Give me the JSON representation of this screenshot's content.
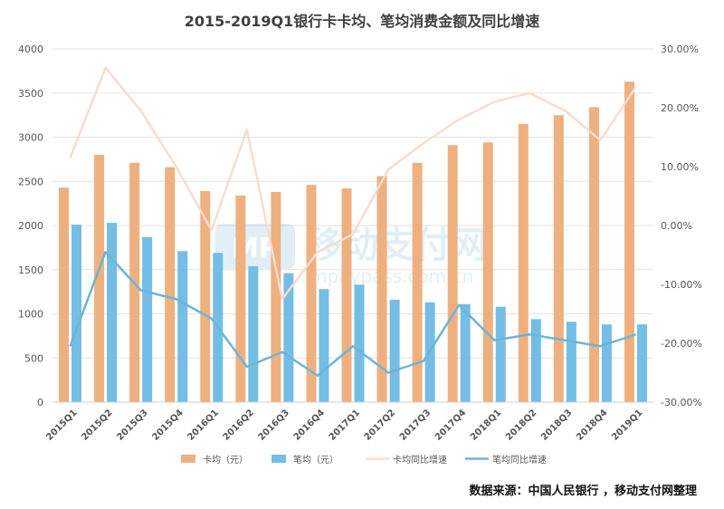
{
  "chart_data": {
    "type": "bar",
    "title": "2015-2019Q1银行卡卡均、笔均消费金额及同比增速",
    "categories": [
      "2015Q1",
      "2015Q2",
      "2015Q3",
      "2015Q4",
      "2016Q1",
      "2016Q2",
      "2016Q3",
      "2016Q4",
      "2017Q1",
      "2017Q2",
      "2017Q3",
      "2017Q4",
      "2018Q1",
      "2018Q2",
      "2018Q3",
      "2018Q4",
      "2019Q1"
    ],
    "y_left": {
      "ylim": [
        0,
        4000
      ],
      "ticks": [
        "0",
        "500",
        "1000",
        "1500",
        "2000",
        "2500",
        "3000",
        "3500",
        "4000"
      ]
    },
    "y_right": {
      "ylim": [
        -30,
        30
      ],
      "ticks": [
        "-30.00%",
        "-20.00%",
        "-10.00%",
        "0.00%",
        "10.00%",
        "20.00%",
        "30.00%"
      ]
    },
    "series": [
      {
        "name": "卡均（元）",
        "type": "bar",
        "axis": "left",
        "color": "#EFB080",
        "values": [
          2430,
          2800,
          2710,
          2660,
          2390,
          2340,
          2380,
          2460,
          2420,
          2560,
          2710,
          2910,
          2940,
          3150,
          3250,
          3340,
          3630
        ]
      },
      {
        "name": "笔均（元）",
        "type": "bar",
        "axis": "left",
        "color": "#74BDE5",
        "values": [
          2010,
          2030,
          1870,
          1710,
          1690,
          1540,
          1460,
          1280,
          1330,
          1160,
          1130,
          1110,
          1080,
          940,
          910,
          880,
          880
        ]
      },
      {
        "name": "卡均同比增速",
        "type": "line",
        "axis": "right",
        "color": "#F7DDCF",
        "values": [
          11.5,
          26.8,
          19.5,
          10.0,
          -0.8,
          16.3,
          -12.5,
          -4.5,
          -1.5,
          9.5,
          14.0,
          18.0,
          21.0,
          22.5,
          19.5,
          14.5,
          23.5
        ]
      },
      {
        "name": "笔均同比增速",
        "type": "line",
        "axis": "right",
        "color": "#6EB4D6",
        "values": [
          -20.5,
          -4.5,
          -11.0,
          -12.5,
          -15.8,
          -24.0,
          -21.5,
          -25.5,
          -20.5,
          -25.0,
          -23.0,
          -13.5,
          -19.5,
          -18.5,
          -19.5,
          -20.5,
          -18.5
        ]
      }
    ],
    "legend_position": "bottom",
    "grid": true,
    "watermark": {
      "text": "移动支付网",
      "subtext": "mpaypass.com.cn",
      "logo": "MP"
    }
  },
  "footer": {
    "source": "数据来源：中国人民银行 ，移动支付网整理"
  }
}
